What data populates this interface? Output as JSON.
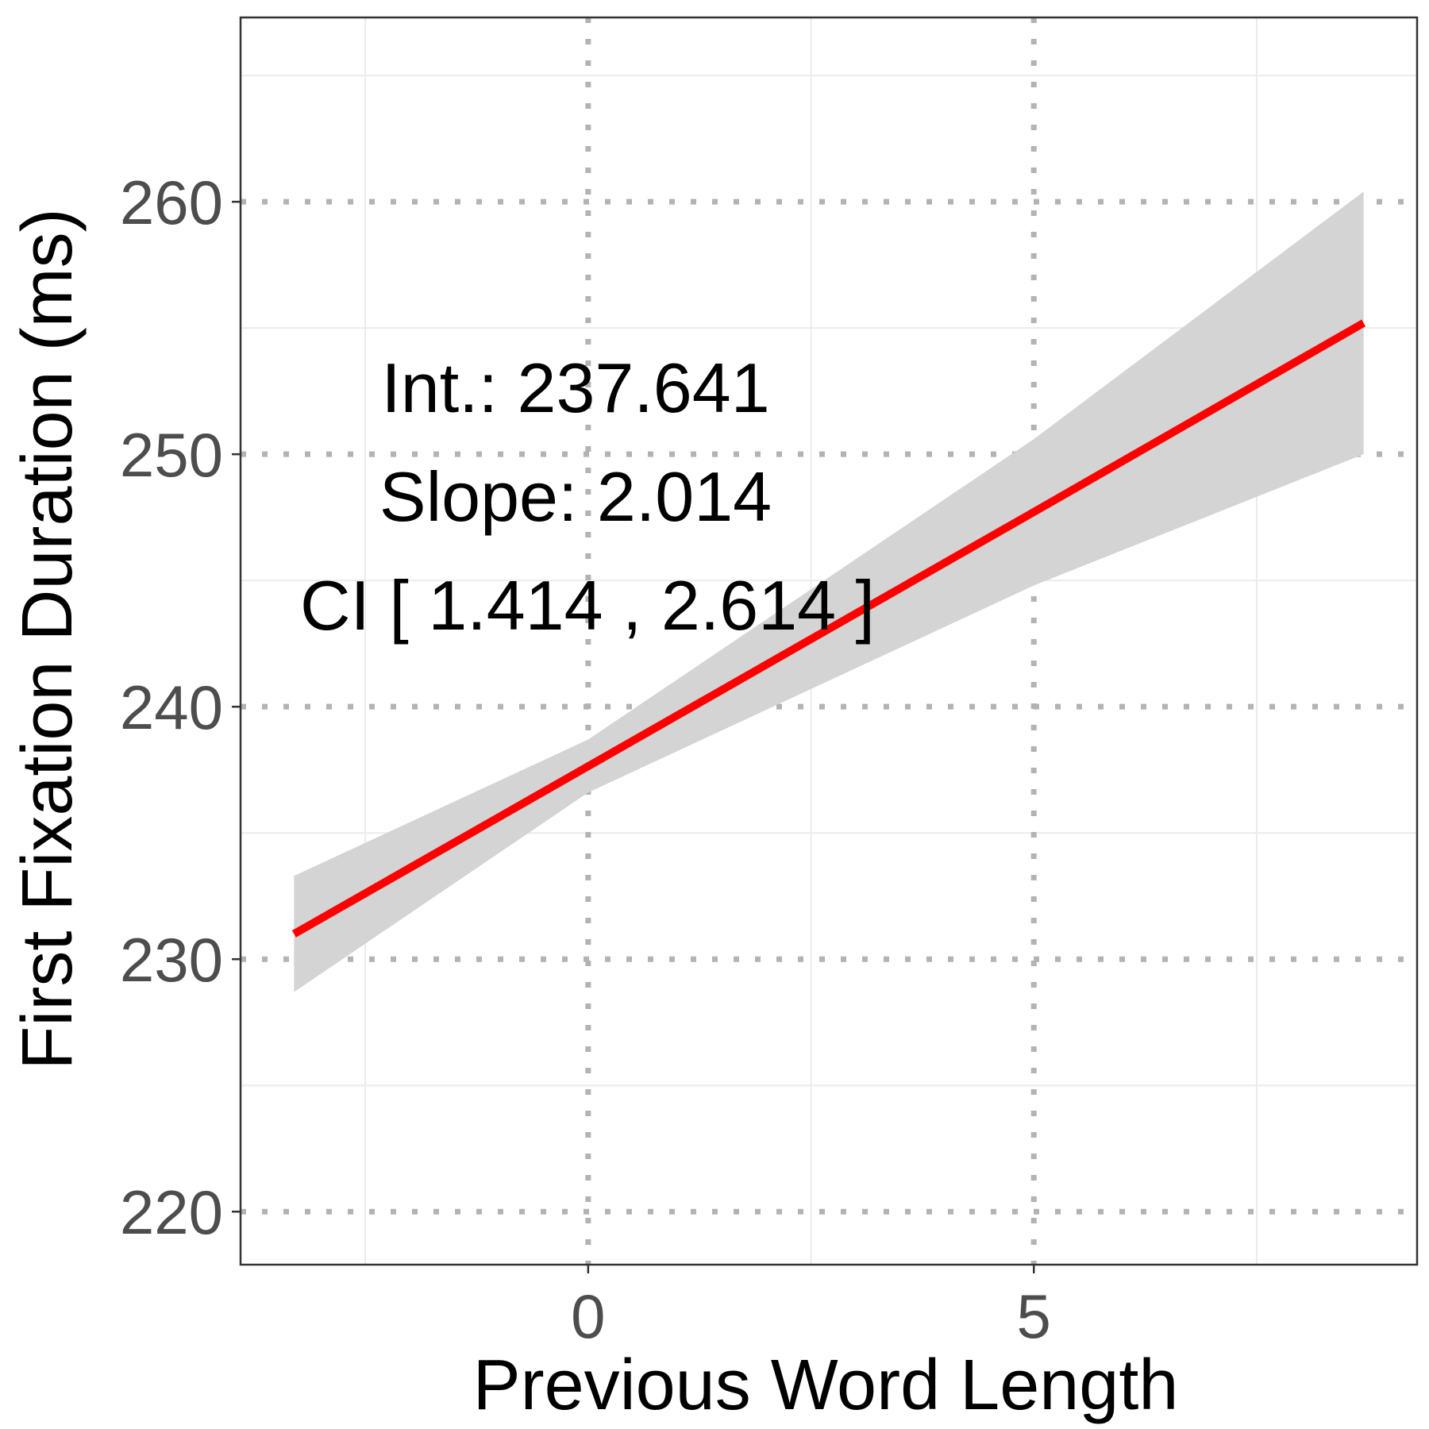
{
  "chart_data": {
    "type": "line",
    "title": "",
    "xlabel": "Previous Word Length",
    "ylabel": "First Fixation Duration (ms)",
    "xlim": [
      -3.9,
      9.3
    ],
    "ylim": [
      217.9,
      267.3
    ],
    "x_major_ticks": [
      0,
      5
    ],
    "x_minor_ticks": [
      -2.5,
      2.5,
      7.5
    ],
    "y_major_ticks": [
      220,
      230,
      240,
      250,
      260
    ],
    "y_minor_ticks": [
      225,
      235,
      245,
      255,
      265
    ],
    "grid": true,
    "legend": "none",
    "series": [
      {
        "x": [
          -3.3,
          0,
          5,
          8.7
        ],
        "y": [
          231.0,
          237.641,
          247.711,
          255.2
        ],
        "ci_lower": [
          228.7,
          236.6,
          244.8,
          250.0
        ],
        "ci_upper": [
          233.3,
          238.7,
          250.6,
          260.4
        ]
      }
    ],
    "annotations": [
      {
        "text": "Int.: 237.641"
      },
      {
        "text": "Slope: 2.014"
      },
      {
        "text": "CI [ 1.414 , 2.614 ]"
      }
    ],
    "colors": {
      "line": "#ff0000",
      "ribbon": "#d4d4d4",
      "major_grid": "#b3b3b3",
      "minor_grid": "#ebebeb",
      "panel_border": "#333333"
    }
  }
}
